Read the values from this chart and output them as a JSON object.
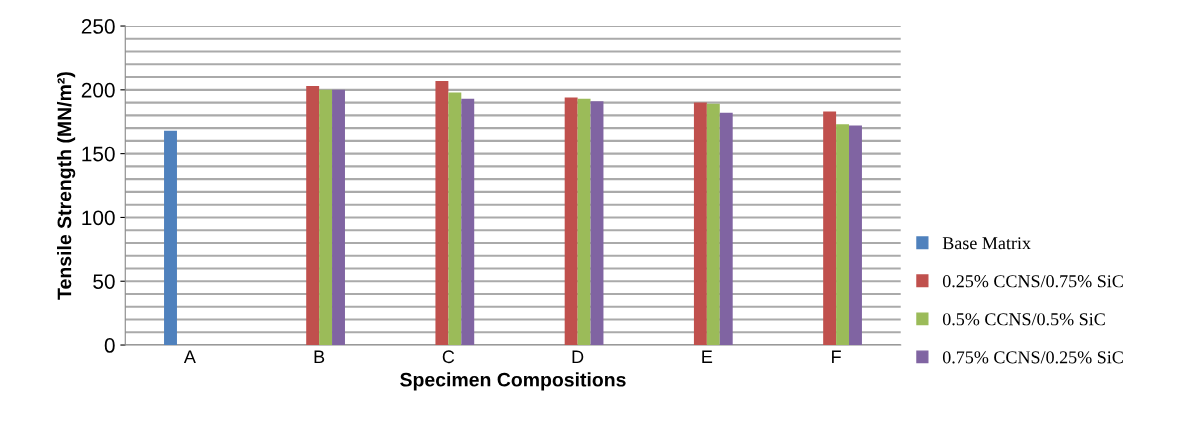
{
  "chart_data": {
    "type": "bar",
    "xlabel": "Specimen Compositions",
    "ylabel": "Tensile Strength (MN/m²)",
    "categories": [
      "A",
      "B",
      "C",
      "D",
      "E",
      "F"
    ],
    "series": [
      {
        "name": "Base Matrix",
        "color": "#4f81bd",
        "values": [
          168,
          null,
          null,
          null,
          null,
          null
        ]
      },
      {
        "name": "0.25% CCNS/0.75% SiC",
        "color": "#c0504d",
        "values": [
          null,
          203,
          207,
          194,
          190,
          183
        ]
      },
      {
        "name": "0.5% CCNS/0.5% SiC",
        "color": "#9bbb59",
        "values": [
          null,
          200,
          198,
          193,
          189,
          173
        ]
      },
      {
        "name": "0.75% CCNS/0.25% SiC",
        "color": "#8064a2",
        "values": [
          null,
          200,
          193,
          191,
          182,
          172
        ]
      }
    ],
    "ylim": [
      0,
      250
    ],
    "yticks": [
      0,
      {
        "value": 10,
        "label": null
      },
      {
        "value": 20,
        "label": null
      },
      {
        "value": 30,
        "label": null
      },
      {
        "value": 40,
        "label": null
      },
      50,
      {
        "value": 60,
        "label": null
      },
      {
        "value": 70,
        "label": null
      },
      {
        "value": 80,
        "label": null
      },
      {
        "value": 90,
        "label": null
      },
      100,
      {
        "value": 110,
        "label": null
      },
      {
        "value": 120,
        "label": null
      },
      {
        "value": 130,
        "label": null
      },
      {
        "value": 140,
        "label": null
      },
      150,
      {
        "value": 160,
        "label": null
      },
      {
        "value": 170,
        "label": null
      },
      {
        "value": 180,
        "label": null
      },
      {
        "value": 190,
        "label": null
      },
      200,
      {
        "value": 210,
        "label": null
      },
      {
        "value": 220,
        "label": null
      },
      {
        "value": 230,
        "label": null
      },
      {
        "value": 240,
        "label": null
      },
      250
    ],
    "grid": "y",
    "legend": "right"
  }
}
